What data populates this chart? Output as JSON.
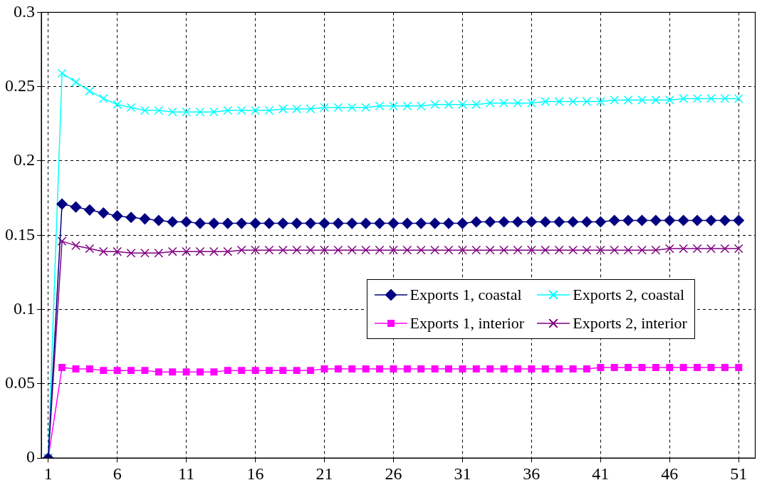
{
  "chart_data": {
    "type": "line",
    "x": [
      1,
      2,
      3,
      4,
      5,
      6,
      7,
      8,
      9,
      10,
      11,
      12,
      13,
      14,
      15,
      16,
      17,
      18,
      19,
      20,
      21,
      22,
      23,
      24,
      25,
      26,
      27,
      28,
      29,
      30,
      31,
      32,
      33,
      34,
      35,
      36,
      37,
      38,
      39,
      40,
      41,
      42,
      43,
      44,
      45,
      46,
      47,
      48,
      49,
      50,
      51
    ],
    "series": [
      {
        "name": "Exports 1, coastal",
        "color": "#000080",
        "marker": "diamond",
        "values": [
          0,
          0.171,
          0.169,
          0.167,
          0.165,
          0.163,
          0.162,
          0.161,
          0.16,
          0.159,
          0.159,
          0.158,
          0.158,
          0.158,
          0.158,
          0.158,
          0.158,
          0.158,
          0.158,
          0.158,
          0.158,
          0.158,
          0.158,
          0.158,
          0.158,
          0.158,
          0.158,
          0.158,
          0.158,
          0.158,
          0.158,
          0.159,
          0.159,
          0.159,
          0.159,
          0.159,
          0.159,
          0.159,
          0.159,
          0.159,
          0.159,
          0.16,
          0.16,
          0.16,
          0.16,
          0.16,
          0.16,
          0.16,
          0.16,
          0.16,
          0.16
        ]
      },
      {
        "name": "Exports 2, coastal",
        "color": "#00ffff",
        "marker": "cross",
        "values": [
          0,
          0.259,
          0.253,
          0.247,
          0.242,
          0.238,
          0.236,
          0.234,
          0.234,
          0.233,
          0.233,
          0.233,
          0.233,
          0.234,
          0.234,
          0.234,
          0.234,
          0.235,
          0.235,
          0.235,
          0.236,
          0.236,
          0.236,
          0.236,
          0.237,
          0.237,
          0.237,
          0.237,
          0.238,
          0.238,
          0.238,
          0.238,
          0.239,
          0.239,
          0.239,
          0.239,
          0.24,
          0.24,
          0.24,
          0.24,
          0.24,
          0.241,
          0.241,
          0.241,
          0.241,
          0.241,
          0.242,
          0.242,
          0.242,
          0.242,
          0.242
        ]
      },
      {
        "name": "Exports 1, interior",
        "color": "#ff00ff",
        "marker": "square",
        "values": [
          0,
          0.061,
          0.06,
          0.06,
          0.059,
          0.059,
          0.059,
          0.059,
          0.058,
          0.058,
          0.058,
          0.058,
          0.058,
          0.059,
          0.059,
          0.059,
          0.059,
          0.059,
          0.059,
          0.059,
          0.06,
          0.06,
          0.06,
          0.06,
          0.06,
          0.06,
          0.06,
          0.06,
          0.06,
          0.06,
          0.06,
          0.06,
          0.06,
          0.06,
          0.06,
          0.06,
          0.06,
          0.06,
          0.06,
          0.06,
          0.061,
          0.061,
          0.061,
          0.061,
          0.061,
          0.061,
          0.061,
          0.061,
          0.061,
          0.061,
          0.061
        ]
      },
      {
        "name": "Exports 2, interior",
        "color": "#800080",
        "marker": "cross",
        "values": [
          0,
          0.146,
          0.143,
          0.141,
          0.139,
          0.139,
          0.138,
          0.138,
          0.138,
          0.139,
          0.139,
          0.139,
          0.139,
          0.139,
          0.14,
          0.14,
          0.14,
          0.14,
          0.14,
          0.14,
          0.14,
          0.14,
          0.14,
          0.14,
          0.14,
          0.14,
          0.14,
          0.14,
          0.14,
          0.14,
          0.14,
          0.14,
          0.14,
          0.14,
          0.14,
          0.14,
          0.14,
          0.14,
          0.14,
          0.14,
          0.14,
          0.14,
          0.14,
          0.14,
          0.14,
          0.141,
          0.141,
          0.141,
          0.141,
          0.141,
          0.141
        ]
      }
    ],
    "xlim": [
      0.5,
      52.2
    ],
    "xticks": [
      1,
      6,
      11,
      16,
      21,
      26,
      31,
      36,
      41,
      46,
      51
    ],
    "ylim": [
      0,
      0.3
    ],
    "yticks": [
      0,
      0.05,
      0.1,
      0.15,
      0.2,
      0.25,
      0.3
    ],
    "grid": true,
    "legend": "right",
    "line_style": "solid"
  }
}
